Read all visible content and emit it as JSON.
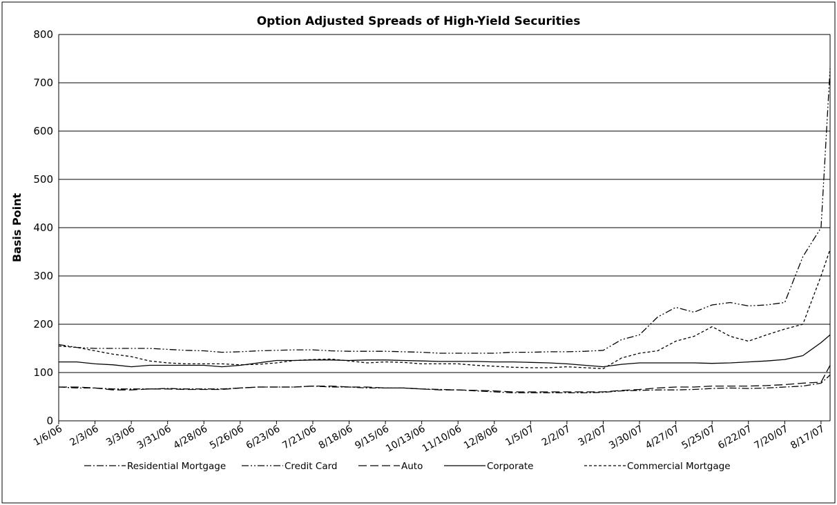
{
  "chart_data": {
    "type": "line",
    "title": "Option Adjusted Spreads of High-Yield Securities",
    "ylabel": "Basis Point",
    "xlabel": "",
    "ylim": [
      0,
      800
    ],
    "yticks": [
      0,
      100,
      200,
      300,
      400,
      500,
      600,
      700,
      800
    ],
    "grid": "horizontal",
    "legend_position": "bottom",
    "x_tick_labels": [
      "1/6/06",
      "2/3/06",
      "3/3/06",
      "3/31/06",
      "4/28/06",
      "5/26/06",
      "6/23/06",
      "7/21/06",
      "8/18/06",
      "9/15/06",
      "10/13/06",
      "11/10/06",
      "12/8/06",
      "1/5/07",
      "2/2/07",
      "3/2/07",
      "3/30/07",
      "4/27/07",
      "5/25/07",
      "6/22/07",
      "7/20/07",
      "8/17/07"
    ],
    "x": [
      "1/6/06",
      "1/20/06",
      "2/3/06",
      "2/17/06",
      "3/3/06",
      "3/17/06",
      "3/31/06",
      "4/14/06",
      "4/28/06",
      "5/12/06",
      "5/26/06",
      "6/9/06",
      "6/23/06",
      "7/7/06",
      "7/21/06",
      "8/4/06",
      "8/18/06",
      "9/1/06",
      "9/15/06",
      "9/29/06",
      "10/13/06",
      "10/27/06",
      "11/10/06",
      "11/24/06",
      "12/8/06",
      "12/22/06",
      "1/5/07",
      "1/19/07",
      "2/2/07",
      "2/16/07",
      "3/2/07",
      "3/16/07",
      "3/30/07",
      "4/13/07",
      "4/27/07",
      "5/11/07",
      "5/25/07",
      "6/8/07",
      "6/22/07",
      "7/6/07",
      "7/20/07",
      "8/3/07",
      "8/17/07",
      "8/24/07"
    ],
    "series": [
      {
        "name": "Residential Mortgage",
        "dash": "dashdot",
        "values": [
          70,
          68,
          68,
          66,
          66,
          66,
          67,
          66,
          66,
          66,
          68,
          70,
          70,
          70,
          72,
          70,
          70,
          68,
          68,
          68,
          66,
          65,
          64,
          62,
          60,
          58,
          58,
          58,
          58,
          58,
          59,
          62,
          63,
          64,
          64,
          65,
          67,
          68,
          67,
          68,
          70,
          72,
          78,
          95
        ]
      },
      {
        "name": "Credit Card",
        "dash": "dashdotdot",
        "values": [
          158,
          152,
          150,
          150,
          150,
          150,
          148,
          146,
          145,
          142,
          143,
          145,
          146,
          147,
          147,
          145,
          144,
          144,
          144,
          143,
          142,
          140,
          140,
          140,
          140,
          142,
          142,
          143,
          143,
          144,
          146,
          168,
          178,
          215,
          235,
          225,
          240,
          245,
          238,
          240,
          245,
          340,
          400,
          730
        ]
      },
      {
        "name": "Auto",
        "dash": "longdash",
        "values": [
          70,
          70,
          68,
          64,
          64,
          66,
          66,
          65,
          65,
          65,
          68,
          70,
          70,
          70,
          72,
          72,
          70,
          70,
          68,
          68,
          66,
          64,
          64,
          63,
          62,
          60,
          60,
          60,
          60,
          60,
          60,
          63,
          65,
          68,
          70,
          70,
          72,
          72,
          72,
          73,
          75,
          78,
          80,
          115
        ]
      },
      {
        "name": "Corporate",
        "dash": "solid",
        "values": [
          122,
          122,
          118,
          116,
          112,
          115,
          115,
          115,
          115,
          112,
          115,
          120,
          125,
          125,
          126,
          126,
          125,
          126,
          126,
          125,
          124,
          123,
          123,
          123,
          122,
          122,
          121,
          120,
          118,
          115,
          112,
          117,
          120,
          120,
          120,
          120,
          119,
          120,
          122,
          124,
          127,
          135,
          162,
          178
        ]
      },
      {
        "name": "Commercial Mortgage",
        "dash": "shortdash",
        "values": [
          155,
          152,
          145,
          138,
          133,
          124,
          120,
          118,
          118,
          118,
          116,
          117,
          120,
          125,
          127,
          128,
          124,
          120,
          122,
          121,
          118,
          118,
          118,
          115,
          113,
          111,
          110,
          110,
          112,
          110,
          108,
          130,
          140,
          145,
          165,
          175,
          195,
          175,
          165,
          178,
          190,
          200,
          300,
          355
        ]
      }
    ]
  }
}
